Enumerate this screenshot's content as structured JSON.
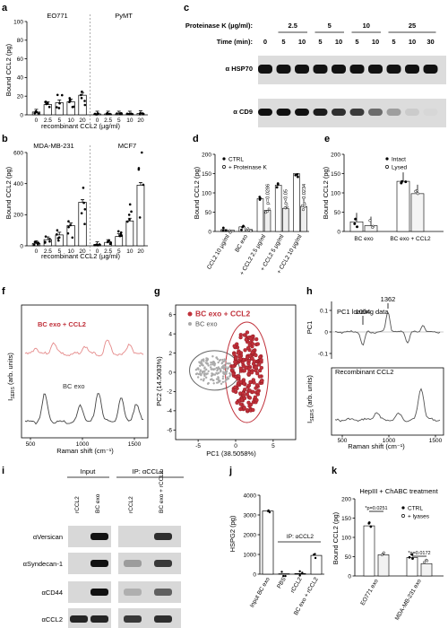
{
  "panel_labels": [
    "a",
    "b",
    "c",
    "d",
    "e",
    "f",
    "g",
    "h",
    "i",
    "j",
    "k"
  ],
  "a": {
    "ylabel": "Bound CCL2 (pg)",
    "xlabel": "recombinant CCL2 (µg/ml)",
    "yticks": [
      "0",
      "20",
      "40",
      "60",
      "80",
      "100"
    ],
    "ymax": 100,
    "xticks": [
      "0",
      "2.5",
      "5",
      "10",
      "20"
    ],
    "group1": "EO771",
    "group2": "PyMT",
    "g1_values": [
      3,
      11,
      13,
      14,
      21
    ],
    "g2_values": [
      1,
      1,
      1,
      1,
      1.5
    ]
  },
  "b": {
    "ylabel": "Bound CCL2 (pg)",
    "xlabel": "recombinant CCL2 (µg/ml)",
    "yticks": [
      "0",
      "200",
      "400",
      "600"
    ],
    "ymax": 600,
    "xticks": [
      "0",
      "2.5",
      "5",
      "10",
      "20"
    ],
    "group1": "MDA-MB-231",
    "group2": "MCF7",
    "g1_values": [
      15,
      40,
      70,
      130,
      280
    ],
    "g2_values": [
      8,
      22,
      60,
      160,
      390
    ]
  },
  "c": {
    "pk_label": "Proteinase K (µg/ml):",
    "time_label": "Time (min):",
    "concentrations": [
      "2.5",
      "5",
      "10",
      "25"
    ],
    "times": [
      "0",
      "5",
      "10",
      "5",
      "10",
      "5",
      "10",
      "5",
      "10",
      "30"
    ],
    "blots": [
      "α HSP70",
      "α CD9"
    ],
    "cd9_intensity": [
      1,
      1,
      1,
      0.95,
      0.85,
      0.8,
      0.55,
      0.3,
      0.08,
      0.02
    ]
  },
  "d": {
    "ylabel": "Bound CCL2 (pg)",
    "yticks": [
      "0",
      "50",
      "100",
      "150",
      "200"
    ],
    "ymax": 200,
    "legend": [
      "CTRL",
      "+ Proteinase K"
    ],
    "categories": [
      "CCL2 10 µg/ml",
      "BC exo",
      "+ CCL2 2.5 µg/ml",
      "+ CCL2 5 µg/ml",
      "+ CCL2 10 µg/ml"
    ],
    "ctrl": [
      5,
      12,
      85,
      120,
      150
    ],
    "pk": [
      3,
      5,
      55,
      60,
      65
    ],
    "pvalues": [
      "p=0.0286",
      "p<0.05",
      "p=0.0234"
    ]
  },
  "e": {
    "ylabel": "Bound CCL2 (pg)",
    "yticks": [
      "0",
      "50",
      "100",
      "150",
      "200"
    ],
    "ymax": 200,
    "legend": [
      "Intact",
      "Lysed"
    ],
    "groups": [
      "BC exo",
      "BC exo + CCL2"
    ],
    "intact": [
      25,
      130
    ],
    "lysed": [
      15,
      98
    ]
  },
  "f": {
    "ylabel": "I",
    "ylabel_sub": "SERS",
    "ylabel_tail": " (arb. units)",
    "xlabel": "Raman shift (cm⁻¹)",
    "xticks": [
      "500",
      "1000",
      "1500"
    ],
    "series": [
      "BC exo + CCL2",
      "BC exo"
    ]
  },
  "g": {
    "xlabel": "PC1 (38.5058%)",
    "ylabel": "PC2 (14.5083%)",
    "xticks": [
      "-5",
      "0",
      "5"
    ],
    "yticks": [
      "-6",
      "-4",
      "-2",
      "0",
      "2",
      "4",
      "6"
    ],
    "legend": [
      "BC exo + CCL2",
      "BC exo"
    ]
  },
  "h": {
    "top_ylabel": "PC1",
    "top_title": "PC1 loading data",
    "top_yticks": [
      "-0.1",
      "0",
      "0.1"
    ],
    "peaks": [
      "1004",
      "1362"
    ],
    "bottom_title": "Recombinant CCL2",
    "bottom_ylabel": "I",
    "bottom_ylabel_sub": "SERS",
    "bottom_ylabel_tail": " (arb. units)",
    "xlabel": "Raman shift (cm⁻¹)",
    "xticks": [
      "500",
      "1000",
      "1500"
    ]
  },
  "i": {
    "input_label": "Input",
    "ip_label": "IP: αCCL2",
    "lanes": [
      "rCCL2",
      "BC exo",
      "rCCL2",
      "BC exo + rCCL2"
    ],
    "blots": [
      "αVersican",
      "αSyndecan-1",
      "αCD44",
      "αCCL2"
    ]
  },
  "j": {
    "ylabel": "HSPG2 (pg)",
    "yticks": [
      "0",
      "1000",
      "2000",
      "3000",
      "4000"
    ],
    "ymax": 4000,
    "categories": [
      "Input BC exo",
      "PBS",
      "rCCL2",
      "BC exo + rCCL2"
    ],
    "values": [
      3200,
      20,
      30,
      950
    ],
    "ip_label": "IP: αCCL2"
  },
  "k": {
    "title": "HepIII + ChABC treatment",
    "ylabel": "Bound CCL2 (pg)",
    "yticks": [
      "0",
      "50",
      "100",
      "150",
      "200"
    ],
    "ymax": 200,
    "legend": [
      "CTRL",
      "+ lyases"
    ],
    "groups": [
      "EO771 exo",
      "MDA-MB-231 exo"
    ],
    "ctrl": [
      130,
      48
    ],
    "lyases": [
      55,
      32
    ],
    "pvalues": [
      "*p=0.0251",
      "*p=0.0172"
    ]
  }
}
